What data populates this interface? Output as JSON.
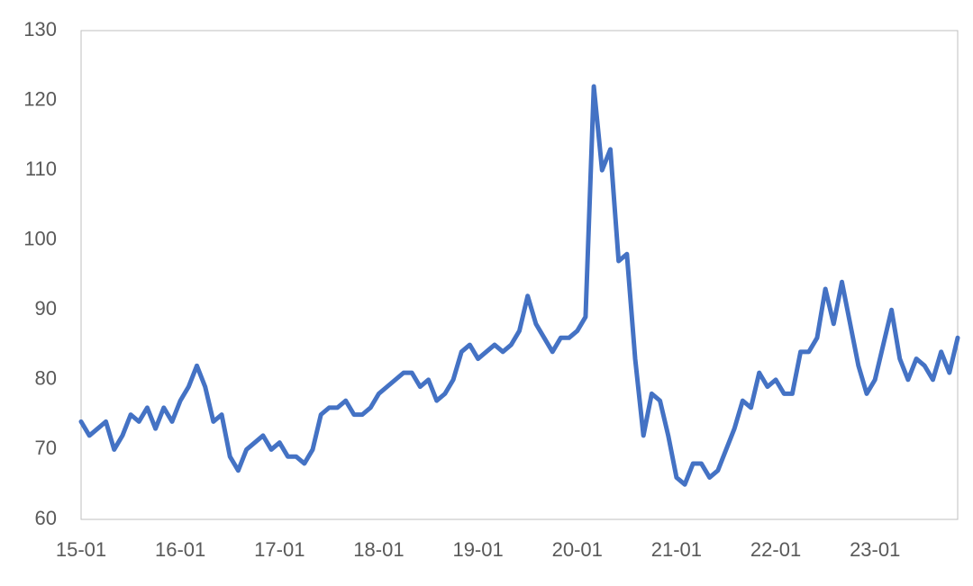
{
  "chart_data": {
    "type": "line",
    "categories": [
      "15-01",
      null,
      null,
      null,
      null,
      null,
      null,
      null,
      null,
      null,
      null,
      null,
      "16-01",
      null,
      null,
      null,
      null,
      null,
      null,
      null,
      null,
      null,
      null,
      null,
      "17-01",
      null,
      null,
      null,
      null,
      null,
      null,
      null,
      null,
      null,
      null,
      null,
      "18-01",
      null,
      null,
      null,
      null,
      null,
      null,
      null,
      null,
      null,
      null,
      null,
      "19-01",
      null,
      null,
      null,
      null,
      null,
      null,
      null,
      null,
      null,
      null,
      null,
      "20-01",
      null,
      null,
      null,
      null,
      null,
      null,
      null,
      null,
      null,
      null,
      null,
      "21-01",
      null,
      null,
      null,
      null,
      null,
      null,
      null,
      null,
      null,
      null,
      null,
      "22-01",
      null,
      null,
      null,
      null,
      null,
      null,
      null,
      null,
      null,
      null,
      null,
      "23-01",
      null,
      null,
      null,
      null,
      null,
      null,
      null,
      null,
      null,
      null
    ],
    "values": [
      74,
      72,
      73,
      74,
      70,
      72,
      75,
      74,
      76,
      73,
      76,
      74,
      77,
      79,
      82,
      79,
      74,
      75,
      69,
      67,
      70,
      71,
      72,
      70,
      71,
      69,
      69,
      68,
      70,
      75,
      76,
      76,
      77,
      75,
      75,
      76,
      78,
      79,
      80,
      81,
      81,
      79,
      80,
      77,
      78,
      80,
      84,
      85,
      83,
      84,
      85,
      84,
      85,
      87,
      92,
      88,
      86,
      84,
      86,
      86,
      87,
      89,
      122,
      110,
      113,
      97,
      98,
      83,
      72,
      78,
      77,
      72,
      66,
      65,
      68,
      68,
      66,
      67,
      70,
      73,
      77,
      76,
      81,
      79,
      80,
      78,
      78,
      84,
      84,
      86,
      93,
      88,
      94,
      88,
      82,
      78,
      80,
      85,
      90,
      83,
      80,
      83,
      82,
      80,
      84,
      81,
      86
    ],
    "color": "#4472c4",
    "ylim": [
      60,
      130
    ],
    "yticks": [
      60,
      70,
      80,
      90,
      100,
      110,
      120,
      130
    ]
  }
}
